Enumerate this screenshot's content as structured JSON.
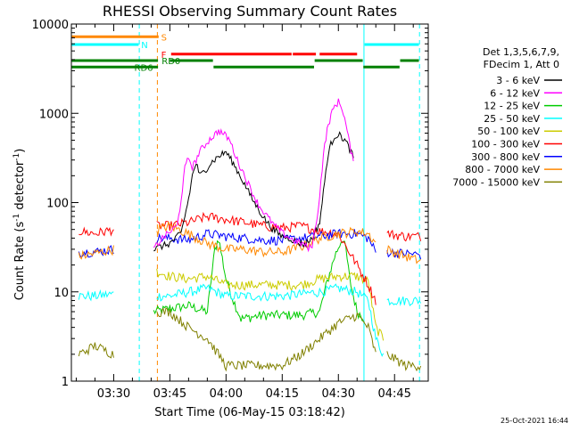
{
  "chart_data": {
    "type": "line",
    "title": "RHESSI Observing Summary Count Rates",
    "xlabel": "Start Time (06-May-15 03:18:42)",
    "ylabel_main": "Count Rate (s",
    "ylabel_sup": "-1",
    "ylabel_mid": " detector",
    "ylabel_sup2": "-1",
    "ylabel_end": ")",
    "y_scale": "log",
    "ylim": [
      1,
      10000
    ],
    "xlim": [
      "03:18:42",
      "04:54:00"
    ],
    "x_ticks": [
      "03:30",
      "03:45",
      "04:00",
      "04:15",
      "04:30",
      "04:45"
    ],
    "y_ticks": [
      "1",
      "10",
      "100",
      "1000",
      "10000"
    ],
    "footer_timestamp": "25-Oct-2021 16:44",
    "legend_header": [
      "Det 1,3,5,6,7,9,",
      "FDecim 1, Att 0"
    ],
    "series": [
      {
        "name": "3 - 6 keV",
        "color": "#000000",
        "points": [
          [
            "03:40:40",
            30
          ],
          [
            "03:42:30",
            32
          ],
          [
            "03:45:00",
            35
          ],
          [
            "03:48:00",
            45
          ],
          [
            "03:50:00",
            110
          ],
          [
            "03:51:00",
            200
          ],
          [
            "03:52:00",
            280
          ],
          [
            "03:53:00",
            200
          ],
          [
            "03:54:00",
            220
          ],
          [
            "03:56:00",
            280
          ],
          [
            "03:58:00",
            330
          ],
          [
            "04:00:00",
            370
          ],
          [
            "04:01:00",
            320
          ],
          [
            "04:03:00",
            230
          ],
          [
            "04:05:00",
            160
          ],
          [
            "04:07:00",
            110
          ],
          [
            "04:09:00",
            80
          ],
          [
            "04:11:00",
            60
          ],
          [
            "04:13:00",
            48
          ],
          [
            "04:15:00",
            42
          ],
          [
            "04:17:00",
            40
          ],
          [
            "04:19:00",
            36
          ],
          [
            "04:21:00",
            34
          ],
          [
            "04:23:00",
            40
          ],
          [
            "04:25:00",
            60
          ],
          [
            "04:26:00",
            130
          ],
          [
            "04:27:00",
            300
          ],
          [
            "04:28:00",
            450
          ],
          [
            "04:29:00",
            560
          ],
          [
            "04:30:00",
            580
          ],
          [
            "04:31:00",
            540
          ],
          [
            "04:32:00",
            480
          ],
          [
            "04:33:00",
            400
          ],
          [
            "04:34:00",
            320
          ]
        ]
      },
      {
        "name": "6 - 12 keV",
        "color": "#ff00ff",
        "points": [
          [
            "03:40:40",
            30
          ],
          [
            "03:43:00",
            40
          ],
          [
            "03:47:00",
            55
          ],
          [
            "03:48:00",
            110
          ],
          [
            "03:49:00",
            240
          ],
          [
            "03:50:00",
            320
          ],
          [
            "03:51:00",
            250
          ],
          [
            "03:52:00",
            300
          ],
          [
            "03:53:00",
            380
          ],
          [
            "03:54:00",
            420
          ],
          [
            "03:55:00",
            480
          ],
          [
            "03:57:00",
            580
          ],
          [
            "03:58:00",
            640
          ],
          [
            "04:00:00",
            560
          ],
          [
            "04:01:00",
            500
          ],
          [
            "04:03:00",
            300
          ],
          [
            "04:05:00",
            200
          ],
          [
            "04:07:00",
            130
          ],
          [
            "04:09:00",
            90
          ],
          [
            "04:11:00",
            70
          ],
          [
            "04:13:00",
            55
          ],
          [
            "04:15:00",
            46
          ],
          [
            "04:17:00",
            40
          ],
          [
            "04:19:00",
            36
          ],
          [
            "04:21:00",
            34
          ],
          [
            "04:22:00",
            30
          ],
          [
            "04:23:00",
            34
          ],
          [
            "04:24:00",
            55
          ],
          [
            "04:25:00",
            120
          ],
          [
            "04:26:00",
            350
          ],
          [
            "04:27:00",
            650
          ],
          [
            "04:28:00",
            950
          ],
          [
            "04:29:00",
            1200
          ],
          [
            "04:30:00",
            1350
          ],
          [
            "04:31:00",
            1150
          ],
          [
            "04:32:00",
            750
          ],
          [
            "04:33:00",
            450
          ],
          [
            "04:34:00",
            280
          ]
        ]
      }
    ],
    "background_series": [
      {
        "name": "12 - 25 keV",
        "color": "#00cc00",
        "segments": [
          [
            [
              "03:40:40",
              6
            ],
            [
              "03:45:00",
              6.5
            ],
            [
              "03:50:00",
              7
            ],
            [
              "03:55:00",
              6
            ],
            [
              "03:57:00",
              30
            ],
            [
              "03:58:00",
              40
            ],
            [
              "04:00:00",
              14
            ],
            [
              "04:02:00",
              8
            ],
            [
              "04:04:00",
              5
            ],
            [
              "04:10:00",
              5.5
            ],
            [
              "04:15:00",
              5.5
            ],
            [
              "04:20:00",
              5.5
            ],
            [
              "04:25:00",
              6
            ],
            [
              "04:27:00",
              13
            ],
            [
              "04:29:00",
              25
            ],
            [
              "04:31:00",
              40
            ],
            [
              "04:32:00",
              30
            ],
            [
              "04:33:00",
              14
            ],
            [
              "04:34:00",
              9
            ],
            [
              "04:35:00",
              6
            ],
            [
              "04:37:00",
              5
            ]
          ]
        ]
      },
      {
        "name": "25 - 50 keV",
        "color": "#00ffff",
        "segments": [
          [
            [
              "03:20:40",
              9
            ],
            [
              "03:25:00",
              9
            ],
            [
              "03:30:00",
              9.5
            ]
          ],
          [
            [
              "03:41:30",
              9
            ],
            [
              "03:45:00",
              9
            ],
            [
              "03:50:00",
              10
            ],
            [
              "03:55:00",
              11
            ],
            [
              "04:00:00",
              9
            ],
            [
              "04:05:00",
              9
            ],
            [
              "04:10:00",
              9
            ],
            [
              "04:15:00",
              9
            ],
            [
              "04:20:00",
              9.5
            ],
            [
              "04:25:00",
              10
            ],
            [
              "04:30:00",
              11
            ],
            [
              "04:35:00",
              10
            ],
            [
              "04:38:00",
              8
            ],
            [
              "04:40:00",
              3
            ],
            [
              "04:42:00",
              2
            ]
          ],
          [
            [
              "04:43:00",
              8
            ],
            [
              "04:48:00",
              8
            ],
            [
              "04:52:00",
              8
            ]
          ]
        ]
      },
      {
        "name": "50 - 100 keV",
        "color": "#cccc00",
        "segments": [
          [
            [
              "03:41:30",
              17
            ],
            [
              "03:45:00",
              15
            ],
            [
              "03:50:00",
              14
            ],
            [
              "03:55:00",
              15
            ],
            [
              "04:00:00",
              12
            ],
            [
              "04:05:00",
              12
            ],
            [
              "04:10:00",
              12
            ],
            [
              "04:15:00",
              12
            ],
            [
              "04:20:00",
              12
            ],
            [
              "04:25:00",
              14
            ],
            [
              "04:30:00",
              15
            ],
            [
              "04:35:00",
              15
            ],
            [
              "04:38:00",
              13
            ],
            [
              "04:40:00",
              4
            ],
            [
              "04:42:00",
              3
            ]
          ]
        ]
      },
      {
        "name": "100 - 300 keV",
        "color": "#ff0000",
        "segments": [
          [
            [
              "03:20:40",
              48
            ],
            [
              "03:25:00",
              45
            ],
            [
              "03:30:00",
              50
            ]
          ],
          [
            [
              "03:41:30",
              55
            ],
            [
              "03:45:00",
              55
            ],
            [
              "03:50:00",
              60
            ],
            [
              "03:55:00",
              70
            ],
            [
              "04:00:00",
              65
            ],
            [
              "04:05:00",
              60
            ],
            [
              "04:10:00",
              55
            ],
            [
              "04:15:00",
              52
            ],
            [
              "04:20:00",
              55
            ],
            [
              "04:25:00",
              48
            ],
            [
              "04:30:00",
              45
            ],
            [
              "04:35:00",
              20
            ],
            [
              "04:38:00",
              12
            ],
            [
              "04:40:00",
              8
            ]
          ],
          [
            [
              "04:43:00",
              45
            ],
            [
              "04:48:00",
              42
            ],
            [
              "04:52:00",
              42
            ]
          ]
        ]
      },
      {
        "name": "300 - 800 keV",
        "color": "#0000ff",
        "segments": [
          [
            [
              "03:20:40",
              28
            ],
            [
              "03:25:00",
              28
            ],
            [
              "03:30:00",
              30
            ]
          ],
          [
            [
              "03:41:30",
              40
            ],
            [
              "03:45:00",
              40
            ],
            [
              "03:50:00",
              38
            ],
            [
              "03:55:00",
              45
            ],
            [
              "04:00:00",
              42
            ],
            [
              "04:05:00",
              40
            ],
            [
              "04:10:00",
              38
            ],
            [
              "04:15:00",
              38
            ],
            [
              "04:20:00",
              40
            ],
            [
              "04:25:00",
              42
            ],
            [
              "04:30:00",
              45
            ],
            [
              "04:35:00",
              45
            ],
            [
              "04:38:00",
              40
            ],
            [
              "04:40:00",
              28
            ]
          ],
          [
            [
              "04:43:00",
              28
            ],
            [
              "04:48:00",
              27
            ],
            [
              "04:52:00",
              26
            ]
          ]
        ]
      },
      {
        "name": "800 - 7000 keV",
        "color": "#ff8800",
        "segments": [
          [
            [
              "03:20:40",
              25
            ],
            [
              "03:25:00",
              27
            ],
            [
              "03:30:00",
              30
            ]
          ],
          [
            [
              "03:41:30",
              50
            ],
            [
              "03:45:00",
              55
            ],
            [
              "03:50:00",
              45
            ],
            [
              "03:55:00",
              35
            ],
            [
              "04:00:00",
              30
            ],
            [
              "04:05:00",
              30
            ],
            [
              "04:10:00",
              28
            ],
            [
              "04:15:00",
              28
            ],
            [
              "04:20:00",
              32
            ],
            [
              "04:25:00",
              40
            ],
            [
              "04:30:00",
              45
            ],
            [
              "04:35:00",
              48
            ],
            [
              "04:38:00",
              45
            ],
            [
              "04:40:00",
              35
            ]
          ],
          [
            [
              "04:43:00",
              30
            ],
            [
              "04:48:00",
              25
            ],
            [
              "04:52:00",
              22
            ]
          ]
        ]
      },
      {
        "name": "7000 - 15000 keV",
        "color": "#808000",
        "segments": [
          [
            [
              "03:20:40",
              2
            ],
            [
              "03:25:00",
              2.5
            ],
            [
              "03:30:00",
              2
            ]
          ],
          [
            [
              "03:41:30",
              6
            ],
            [
              "03:45:00",
              6
            ],
            [
              "03:50:00",
              4
            ],
            [
              "03:55:00",
              3
            ],
            [
              "04:00:00",
              1.5
            ],
            [
              "04:05:00",
              1.5
            ],
            [
              "04:10:00",
              1.5
            ],
            [
              "04:15:00",
              1.5
            ],
            [
              "04:20:00",
              2
            ],
            [
              "04:25:00",
              3
            ],
            [
              "04:30:00",
              4.5
            ],
            [
              "04:35:00",
              5.5
            ],
            [
              "04:38:00",
              4
            ],
            [
              "04:40:00",
              2
            ]
          ],
          [
            [
              "04:43:00",
              2
            ],
            [
              "04:48:00",
              1.5
            ],
            [
              "04:52:00",
              1.5
            ]
          ]
        ]
      }
    ],
    "flag_bars": [
      {
        "label": "S",
        "color": "#ff8800",
        "level": 7200,
        "label_x": "03:42:40",
        "segments": [
          [
            "03:18:42",
            "03:42:00"
          ]
        ]
      },
      {
        "label": "N",
        "color": "#00ffff",
        "level": 5900,
        "label_x": "03:37:20",
        "segments": [
          [
            "03:18:42",
            "03:36:40"
          ],
          [
            "04:37:00",
            "04:51:30"
          ]
        ]
      },
      {
        "label": "F",
        "color": "#ff0000",
        "level": 4600,
        "label_x": "03:42:40",
        "segments": [
          [
            "03:45:20",
            "04:17:30"
          ],
          [
            "04:17:50",
            "04:24:00"
          ],
          [
            "04:25:00",
            "04:35:00"
          ]
        ]
      },
      {
        "label": "RD0",
        "color": "#008000",
        "level": 3900,
        "label_x": "03:42:50",
        "segments": [
          [
            "03:18:42",
            "03:41:50"
          ],
          [
            "03:45:00",
            "03:56:30"
          ],
          [
            "04:23:40",
            "04:36:30"
          ],
          [
            "04:46:30",
            "04:51:30"
          ]
        ]
      },
      {
        "label": "RD6",
        "color": "#008000",
        "level": 3300,
        "label_x": "03:35:30",
        "segments": [
          [
            "03:18:42",
            "03:41:50"
          ],
          [
            "03:56:40",
            "04:23:30"
          ],
          [
            "04:36:40",
            "04:46:20"
          ]
        ]
      }
    ],
    "vertical_lines": [
      {
        "time": "03:18:42",
        "color": "#00ffff",
        "style": "solid"
      },
      {
        "time": "03:36:50",
        "color": "#00ffff",
        "style": "dashed"
      },
      {
        "time": "03:41:40",
        "color": "#ff8800",
        "style": "dashed"
      },
      {
        "time": "04:36:50",
        "color": "#00ffff",
        "style": "solid"
      },
      {
        "time": "04:51:40",
        "color": "#00ffff",
        "style": "dashed"
      }
    ]
  }
}
